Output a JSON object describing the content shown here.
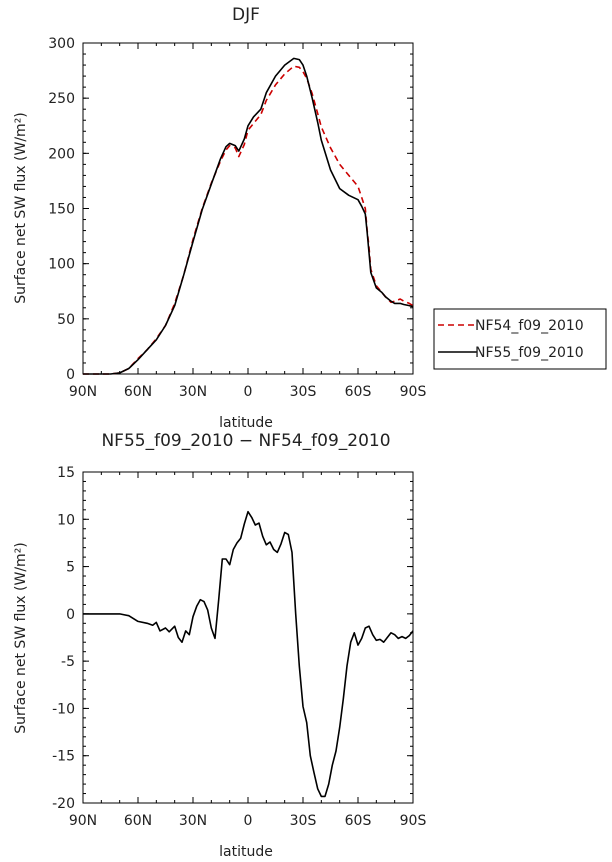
{
  "chart_data": [
    {
      "type": "line",
      "title": "DJF",
      "xlabel": "latitude",
      "ylabel": "Surface net SW flux (W/m²)",
      "xlim": [
        90,
        -90
      ],
      "ylim": [
        0,
        300
      ],
      "xticks": [
        90,
        60,
        30,
        0,
        -30,
        -60,
        -90
      ],
      "xtick_labels": [
        "90N",
        "60N",
        "30N",
        "0",
        "30S",
        "60S",
        "90S"
      ],
      "yticks": [
        0,
        50,
        100,
        150,
        200,
        250,
        300
      ],
      "ytick_labels": [
        "0",
        "50",
        "100",
        "150",
        "200",
        "250",
        "300"
      ],
      "legend": "outside-right",
      "series": [
        {
          "name": "NF54_f09_2010",
          "color": "#cc0000",
          "style": "dashed",
          "x": [
            90,
            85,
            80,
            75,
            70,
            65,
            60,
            55,
            50,
            45,
            40,
            35,
            30,
            25,
            20,
            15,
            12,
            10,
            7,
            5,
            2,
            0,
            -3,
            -7,
            -10,
            -15,
            -20,
            -25,
            -28,
            -30,
            -32,
            -35,
            -38,
            -40,
            -45,
            -50,
            -55,
            -60,
            -62,
            -64,
            -65,
            -66,
            -67,
            -70,
            -73,
            -75,
            -78,
            -80,
            -83,
            -85,
            -88,
            -90
          ],
          "y": [
            0,
            0,
            0,
            0,
            1,
            5,
            14,
            22,
            32,
            44,
            64,
            90,
            122,
            150,
            173,
            193,
            203,
            207,
            205,
            197,
            208,
            221,
            227,
            235,
            248,
            262,
            272,
            279,
            278,
            274,
            268,
            254,
            236,
            224,
            205,
            190,
            180,
            170,
            160,
            150,
            130,
            115,
            95,
            80,
            74,
            70,
            65,
            66,
            68,
            66,
            64,
            62
          ]
        },
        {
          "name": "NF55_f09_2010",
          "color": "#000000",
          "style": "solid",
          "x": [
            90,
            85,
            80,
            75,
            70,
            65,
            60,
            55,
            50,
            45,
            40,
            35,
            30,
            25,
            20,
            15,
            12,
            10,
            7,
            5,
            2,
            0,
            -3,
            -7,
            -10,
            -15,
            -20,
            -25,
            -28,
            -30,
            -32,
            -35,
            -38,
            -40,
            -45,
            -50,
            -55,
            -60,
            -62,
            -64,
            -65,
            -66,
            -67,
            -70,
            -73,
            -75,
            -78,
            -80,
            -83,
            -85,
            -88,
            -90
          ],
          "y": [
            0,
            0,
            0,
            0,
            1,
            5,
            13,
            22,
            31,
            44,
            62,
            90,
            120,
            149,
            172,
            195,
            206,
            209,
            207,
            202,
            213,
            225,
            233,
            240,
            255,
            270,
            280,
            286,
            285,
            280,
            270,
            250,
            228,
            212,
            185,
            168,
            162,
            158,
            152,
            145,
            128,
            110,
            92,
            78,
            74,
            70,
            66,
            64,
            64,
            63,
            62,
            61
          ]
        }
      ]
    },
    {
      "type": "line",
      "title": "NF55_f09_2010 − NF54_f09_2010",
      "xlabel": "latitude",
      "ylabel": "Surface net SW flux (W/m²)",
      "xlim": [
        90,
        -90
      ],
      "ylim": [
        -20,
        15
      ],
      "xticks": [
        90,
        60,
        30,
        0,
        -30,
        -60,
        -90
      ],
      "xtick_labels": [
        "90N",
        "60N",
        "30N",
        "0",
        "30S",
        "60S",
        "90S"
      ],
      "yticks": [
        -20,
        -15,
        -10,
        -5,
        0,
        5,
        10,
        15
      ],
      "ytick_labels": [
        "-20",
        "-15",
        "-10",
        "-5",
        "0",
        "5",
        "10",
        "15"
      ],
      "series": [
        {
          "color": "#000000",
          "style": "solid",
          "x": [
            90,
            80,
            70,
            65,
            60,
            55,
            52,
            50,
            48,
            45,
            43,
            40,
            38,
            36,
            34,
            32,
            30,
            28,
            26,
            24,
            22,
            20,
            18,
            16,
            14,
            12,
            10,
            8,
            6,
            4,
            2,
            0,
            -2,
            -4,
            -6,
            -8,
            -10,
            -12,
            -14,
            -16,
            -18,
            -20,
            -22,
            -24,
            -26,
            -28,
            -30,
            -32,
            -34,
            -36,
            -38,
            -40,
            -42,
            -44,
            -46,
            -48,
            -50,
            -52,
            -54,
            -56,
            -58,
            -60,
            -62,
            -64,
            -66,
            -68,
            -70,
            -72,
            -74,
            -76,
            -78,
            -80,
            -82,
            -84,
            -86,
            -88,
            -90
          ],
          "y": [
            0,
            0,
            0,
            -0.2,
            -0.8,
            -1.0,
            -1.2,
            -0.9,
            -1.8,
            -1.5,
            -1.9,
            -1.3,
            -2.5,
            -3.0,
            -1.8,
            -2.2,
            -0.3,
            0.8,
            1.5,
            1.3,
            0.4,
            -1.5,
            -2.6,
            1.5,
            5.8,
            5.8,
            5.2,
            6.8,
            7.5,
            8.0,
            9.5,
            10.8,
            10.2,
            9.4,
            9.6,
            8.2,
            7.3,
            7.6,
            6.8,
            6.5,
            7.4,
            8.6,
            8.4,
            6.5,
            0,
            -5.5,
            -9.8,
            -11.5,
            -15.0,
            -16.8,
            -18.5,
            -19.3,
            -19.3,
            -18.0,
            -16.0,
            -14.5,
            -12.0,
            -9.0,
            -5.5,
            -3.0,
            -2.0,
            -3.3,
            -2.6,
            -1.5,
            -1.3,
            -2.2,
            -2.8,
            -2.7,
            -3.0,
            -2.5,
            -2.0,
            -2.2,
            -2.6,
            -2.4,
            -2.6,
            -2.3,
            -1.8
          ]
        }
      ]
    }
  ]
}
